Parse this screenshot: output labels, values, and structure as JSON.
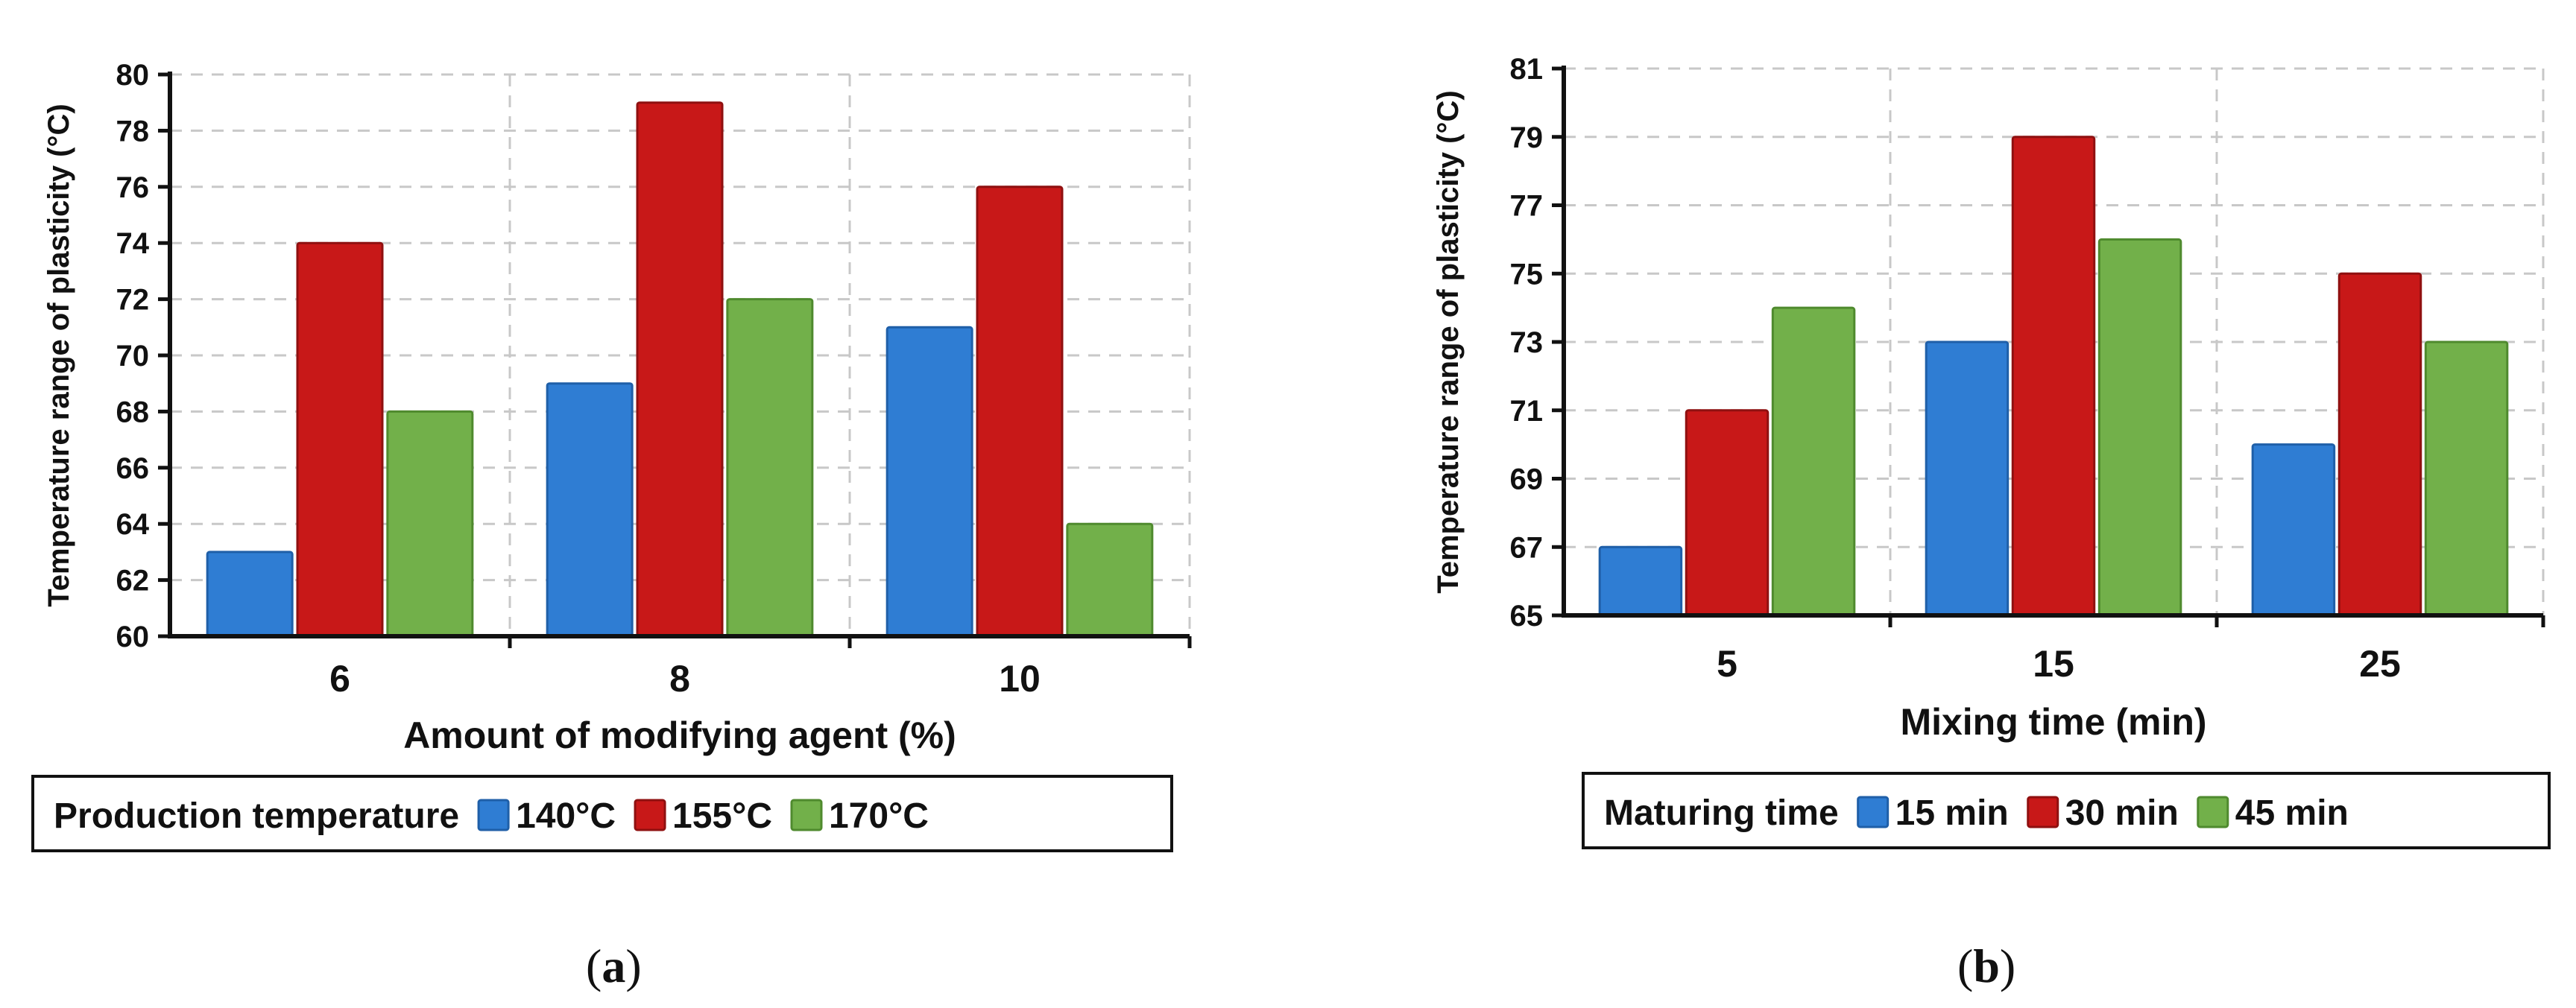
{
  "colors": {
    "blue": "#2f7dd3",
    "blue_edge": "#1f5fa8",
    "red": "#c81818",
    "red_edge": "#8f1010",
    "green": "#72b04a",
    "green_edge": "#4f8a2e",
    "axis": "#111111",
    "grid": "#c8c8c8"
  },
  "chart_data": [
    {
      "type": "bar",
      "ylabel": "Temperature range of plasticity (°C)",
      "xlabel": "Amount of modifying agent (%)",
      "categories": [
        "6",
        "8",
        "10"
      ],
      "ylim": [
        60,
        80
      ],
      "ytick_step": 2,
      "yticks": [
        "60",
        "62",
        "64",
        "66",
        "68",
        "70",
        "72",
        "74",
        "76",
        "78",
        "80"
      ],
      "grid": true,
      "legend": {
        "title": "Production temperature",
        "entries": [
          "140°C",
          "155°C",
          "170°C"
        ],
        "placement": "bottom"
      },
      "series": [
        {
          "name": "140°C",
          "values": [
            63,
            69,
            71
          ]
        },
        {
          "name": "155°C",
          "values": [
            74,
            79,
            76
          ]
        },
        {
          "name": "170°C",
          "values": [
            68,
            72,
            64
          ]
        }
      ],
      "caption_prefix": "(",
      "caption_label": "a",
      "caption_suffix": ")"
    },
    {
      "type": "bar",
      "ylabel": "Temperature range of plasticity (°C)",
      "xlabel": "Mixing time (min)",
      "categories": [
        "5",
        "15",
        "25"
      ],
      "ylim": [
        65,
        81
      ],
      "ytick_step": 2,
      "yticks": [
        "65",
        "67",
        "69",
        "71",
        "73",
        "75",
        "77",
        "79",
        "81"
      ],
      "grid": true,
      "legend": {
        "title": "Maturing time",
        "entries": [
          "15 min",
          "30 min",
          "45 min"
        ],
        "placement": "bottom"
      },
      "series": [
        {
          "name": "15 min",
          "values": [
            67,
            73,
            70
          ]
        },
        {
          "name": "30 min",
          "values": [
            71,
            79,
            75
          ]
        },
        {
          "name": "45 min",
          "values": [
            74,
            76,
            73
          ]
        }
      ],
      "caption_prefix": "(",
      "caption_label": "b",
      "caption_suffix": ")"
    }
  ]
}
